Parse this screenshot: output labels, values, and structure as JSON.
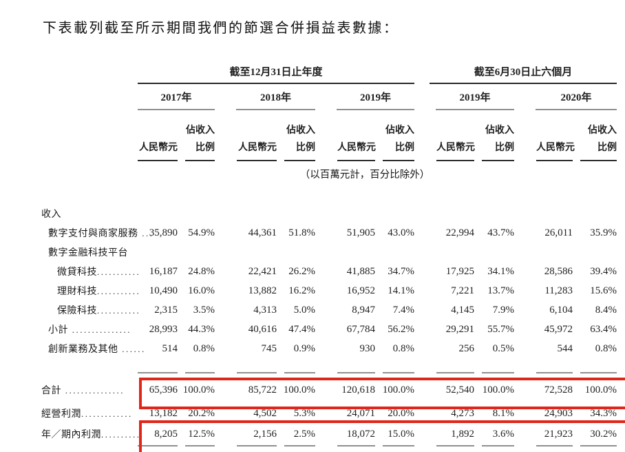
{
  "title": "下表載列截至所示期間我們的節選合併損益表數據：",
  "colors": {
    "highlight_red": "#e0251b",
    "rule_gray": "#8f8f8f",
    "header_line_black": "#262626",
    "text": "#1f1f1f"
  },
  "table": {
    "column_groups": [
      {
        "label": "截至12月31日止年度",
        "years": [
          "2017年",
          "2018年",
          "2019年"
        ]
      },
      {
        "label": "截至6月30日止六個月",
        "years": [
          "2019年",
          "2020年"
        ]
      }
    ],
    "subheaders": {
      "amount": "人民幣元",
      "pct_line1": "佔收入",
      "pct_line2": "比例"
    },
    "note": "（以百萬元計，百分比除外）",
    "rows": [
      {
        "label": "收入",
        "dots": "",
        "indent": 0,
        "values": []
      },
      {
        "label": "數字支付與商家服務",
        "dots": " ...",
        "indent": 1,
        "values": [
          "35,890",
          "54.9%",
          "44,361",
          "51.8%",
          "51,905",
          "43.0%",
          "22,994",
          "43.7%",
          "26,011",
          "35.9%"
        ]
      },
      {
        "label": "數字金融科技平台",
        "dots": "",
        "indent": 1,
        "values": []
      },
      {
        "label": "微貸科技",
        "dots": "...........",
        "indent": 2,
        "values": [
          "16,187",
          "24.8%",
          "22,421",
          "26.2%",
          "41,885",
          "34.7%",
          "17,925",
          "34.1%",
          "28,586",
          "39.4%"
        ]
      },
      {
        "label": "理財科技",
        "dots": "...........",
        "indent": 2,
        "values": [
          "10,490",
          "16.0%",
          "13,882",
          "16.2%",
          "16,952",
          "14.1%",
          "7,221",
          "13.7%",
          "11,283",
          "15.6%"
        ]
      },
      {
        "label": "保險科技",
        "dots": "...........",
        "indent": 2,
        "values": [
          "2,315",
          "3.5%",
          "4,313",
          "5.0%",
          "8,947",
          "7.4%",
          "4,145",
          "7.9%",
          "6,104",
          "8.4%"
        ]
      },
      {
        "label": "小計",
        "dots": " ...............",
        "indent": 1,
        "values": [
          "28,993",
          "44.3%",
          "40,616",
          "47.4%",
          "67,784",
          "56.2%",
          "29,291",
          "55.7%",
          "45,972",
          "63.4%"
        ]
      },
      {
        "label": "創新業務及其他",
        "dots": " ......",
        "indent": 1,
        "values": [
          "514",
          "0.8%",
          "745",
          "0.9%",
          "930",
          "0.8%",
          "256",
          "0.5%",
          "544",
          "0.8%"
        ]
      },
      {
        "label": "合計",
        "dots": " ...............",
        "indent": 0,
        "highlighted": true,
        "rule_above": true,
        "values": [
          "65,396",
          "100.0%",
          "85,722",
          "100.0%",
          "120,618",
          "100.0%",
          "52,540",
          "100.0%",
          "72,528",
          "100.0%"
        ]
      },
      {
        "label": "經營利潤",
        "dots": ".............",
        "indent": 0,
        "values": [
          "13,182",
          "20.2%",
          "4,502",
          "5.3%",
          "24,071",
          "20.0%",
          "4,273",
          "8.1%",
          "24,903",
          "34.3%"
        ]
      },
      {
        "label": "年／期內利潤",
        "dots": "..........",
        "indent": 0,
        "highlighted": true,
        "rule_below": true,
        "values": [
          "8,205",
          "12.5%",
          "2,156",
          "2.5%",
          "18,072",
          "15.0%",
          "1,892",
          "3.6%",
          "21,923",
          "30.2%"
        ]
      }
    ]
  }
}
